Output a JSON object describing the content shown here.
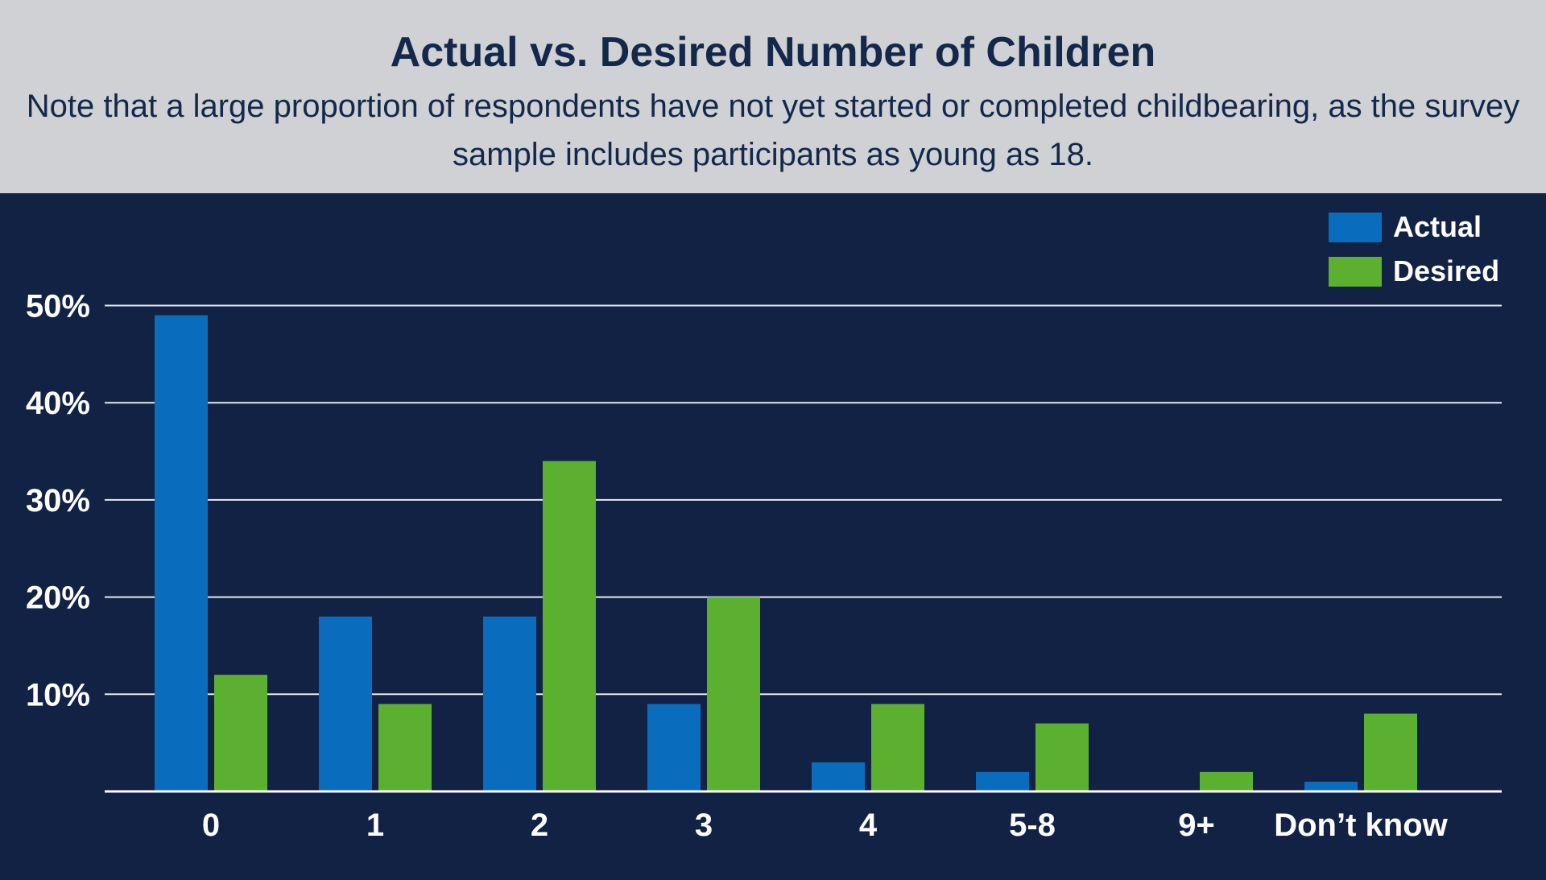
{
  "header": {
    "title": "Actual vs. Desired Number of Children",
    "subtitle": "Note that a large proportion of respondents have not yet started or completed childbearing, as the survey sample includes participants as young as 18."
  },
  "colors": {
    "header_bg": "#d0d1d4",
    "plot_bg": "#112244",
    "title_text": "#13284a",
    "actual": "#0a6cbd",
    "desired": "#5cb030",
    "gridline": "#ffffff",
    "axis_text": "#ffffff"
  },
  "chart_data": {
    "type": "bar",
    "title": "Actual vs. Desired Number of Children",
    "subtitle": "Note that a large proportion of respondents have not yet started or completed childbearing, as the survey sample includes participants as young as 18.",
    "xlabel": "",
    "ylabel": "",
    "categories": [
      "0",
      "1",
      "2",
      "3",
      "4",
      "5-8",
      "9+",
      "Don’t know"
    ],
    "series": [
      {
        "name": "Actual",
        "color": "#0a6cbd",
        "values": [
          49,
          18,
          18,
          9,
          3,
          2,
          0,
          1
        ]
      },
      {
        "name": "Desired",
        "color": "#5cb030",
        "values": [
          12,
          9,
          34,
          20,
          9,
          7,
          2,
          8
        ]
      }
    ],
    "ylim": [
      0,
      50
    ],
    "yticks": [
      10,
      20,
      30,
      40,
      50
    ],
    "ytick_labels": [
      "10%",
      "20%",
      "30%",
      "40%",
      "50%"
    ],
    "grid": true,
    "legend_position": "top-right"
  }
}
